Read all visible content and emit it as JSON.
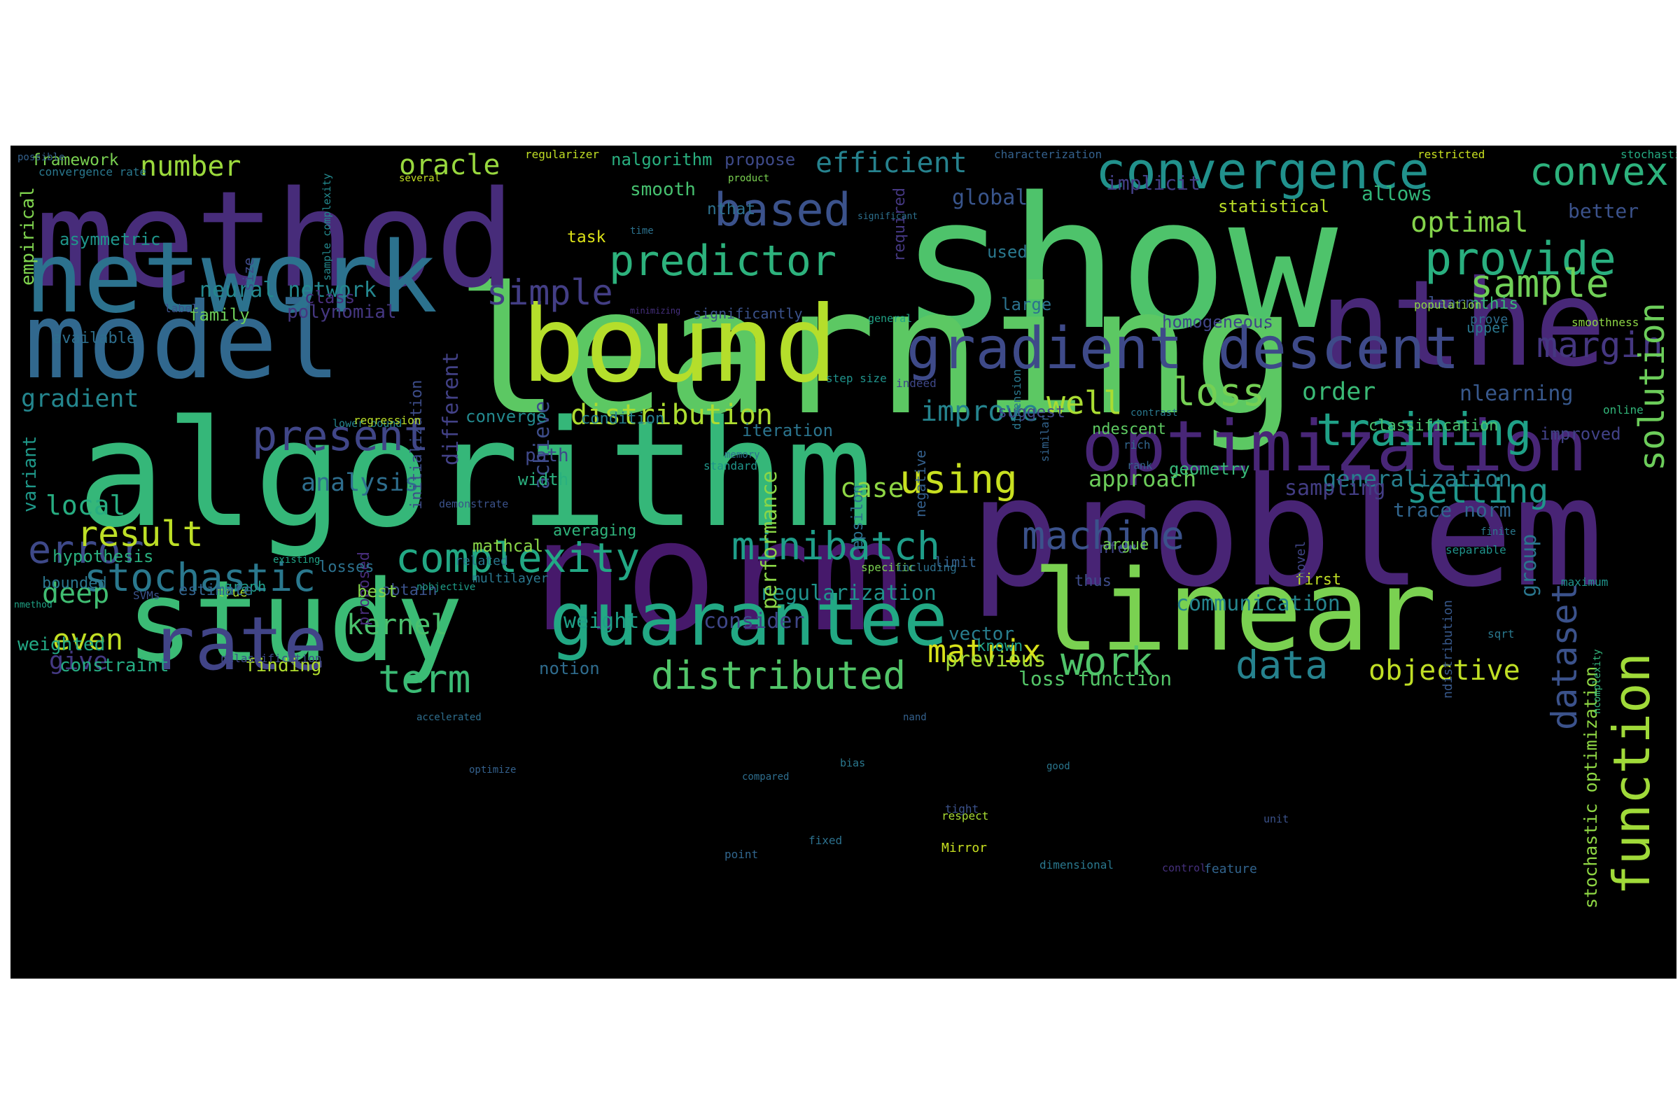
{
  "cloud": {
    "words": [
      {
        "text": "show",
        "color": "#4ec36b"
      },
      {
        "text": "learning",
        "color": "#5cc863"
      },
      {
        "text": "algorithm",
        "color": "#35b779"
      },
      {
        "text": "problem",
        "color": "#482475"
      },
      {
        "text": "method",
        "color": "#472c7a"
      },
      {
        "text": "norm",
        "color": "#46196b"
      },
      {
        "text": "model",
        "color": "#31688e"
      },
      {
        "text": "bound",
        "color": "#b5de2b"
      },
      {
        "text": "nthe",
        "color": "#482878"
      },
      {
        "text": "network",
        "color": "#2c728e"
      },
      {
        "text": "study",
        "color": "#3bbb75"
      },
      {
        "text": "linear",
        "color": "#7ad151"
      },
      {
        "text": "rate",
        "color": "#414487"
      },
      {
        "text": "guarantee",
        "color": "#22a884"
      },
      {
        "text": "optimization",
        "color": "#482677"
      },
      {
        "text": "gradient descent",
        "color": "#3e4a89"
      },
      {
        "text": "convergence",
        "color": "#21918c"
      },
      {
        "text": "function",
        "color": "#a0da39"
      },
      {
        "text": "complexity",
        "color": "#22a884"
      },
      {
        "text": "training",
        "color": "#1fa187"
      },
      {
        "text": "predictor",
        "color": "#2db27d"
      },
      {
        "text": "provide",
        "color": "#29af7f"
      },
      {
        "text": "minibatch",
        "color": "#1f9e89"
      },
      {
        "text": "based",
        "color": "#3b528b"
      },
      {
        "text": "present",
        "color": "#404688"
      },
      {
        "text": "distributed",
        "color": "#52c569"
      },
      {
        "text": "using",
        "color": "#c8e020"
      },
      {
        "text": "convex",
        "color": "#2db27d"
      },
      {
        "text": "stochastic",
        "color": "#2a788e"
      },
      {
        "text": "error",
        "color": "#3e4989"
      },
      {
        "text": "machine",
        "color": "#3b528b"
      },
      {
        "text": "sample",
        "color": "#70cf57"
      },
      {
        "text": "margin",
        "color": "#453781"
      },
      {
        "text": "data",
        "color": "#26828e"
      },
      {
        "text": "solution",
        "color": "#6ccd5a"
      },
      {
        "text": "work",
        "color": "#50c46a"
      },
      {
        "text": "term",
        "color": "#3bbb75"
      },
      {
        "text": "result",
        "color": "#bddf26"
      },
      {
        "text": "objective",
        "color": "#c0df25"
      },
      {
        "text": "loss",
        "color": "#75d054"
      },
      {
        "text": "matrix",
        "color": "#d8e219"
      },
      {
        "text": "setting",
        "color": "#1f968b"
      },
      {
        "text": "simple",
        "color": "#433e85"
      },
      {
        "text": "oracle",
        "color": "#98d83e"
      },
      {
        "text": "efficient",
        "color": "#26828e"
      },
      {
        "text": "number",
        "color": "#9bd93c"
      },
      {
        "text": "distribution",
        "color": "#addc30"
      },
      {
        "text": "analysis",
        "color": "#2e6e8e"
      },
      {
        "text": "well",
        "color": "#aadc32"
      },
      {
        "text": "improve",
        "color": "#25848e"
      },
      {
        "text": "kernel",
        "color": "#4ac16d"
      },
      {
        "text": "case",
        "color": "#8ed645"
      },
      {
        "text": "even",
        "color": "#c2df23"
      },
      {
        "text": "generalization",
        "color": "#277f8e"
      },
      {
        "text": "local",
        "color": "#27ad81"
      },
      {
        "text": "deep",
        "color": "#40bd72"
      },
      {
        "text": "optimal",
        "color": "#84d44b"
      },
      {
        "text": "order",
        "color": "#3aba76"
      },
      {
        "text": "dataset",
        "color": "#3b528b"
      },
      {
        "text": "gradient",
        "color": "#24868e"
      },
      {
        "text": "give",
        "color": "#443983"
      },
      {
        "text": "regularization",
        "color": "#20928c"
      },
      {
        "text": "neural network",
        "color": "#24878e"
      },
      {
        "text": "approach",
        "color": "#6ccd5a"
      },
      {
        "text": "communication",
        "color": "#25858e"
      },
      {
        "text": "sampling",
        "color": "#433d84"
      },
      {
        "text": "trace norm",
        "color": "#31668e"
      },
      {
        "text": "weight",
        "color": "#1fa088"
      },
      {
        "text": "consider",
        "color": "#3f4788"
      },
      {
        "text": "loss function",
        "color": "#54c568"
      },
      {
        "text": "previous",
        "color": "#a2da37"
      },
      {
        "text": "global",
        "color": "#39558c"
      },
      {
        "text": "implicit",
        "color": "#433e85"
      },
      {
        "text": "nlearning",
        "color": "#38588c"
      },
      {
        "text": "achieve",
        "color": "#3d4d8a"
      },
      {
        "text": "different",
        "color": "#424186"
      },
      {
        "text": "performance",
        "color": "#8bd646"
      },
      {
        "text": "group",
        "color": "#2a768e"
      },
      {
        "text": "vector",
        "color": "#287d8e"
      },
      {
        "text": "allows",
        "color": "#32b67a"
      },
      {
        "text": "better",
        "color": "#3b528b"
      },
      {
        "text": "statistical",
        "color": "#bade28"
      },
      {
        "text": "propose",
        "color": "#3e4a89"
      },
      {
        "text": "nalgorithm",
        "color": "#29af7f"
      },
      {
        "text": "class",
        "color": "#472d7b"
      },
      {
        "text": "polynomial",
        "color": "#453781"
      },
      {
        "text": "family",
        "color": "#6ccd5a"
      },
      {
        "text": "constraint",
        "color": "#25ab82"
      },
      {
        "text": "finding",
        "color": "#b0dd2f"
      },
      {
        "text": "weighted",
        "color": "#22a884"
      },
      {
        "text": "variant",
        "color": "#1f998a"
      },
      {
        "text": "stochastic optimization",
        "color": "#8fd744"
      },
      {
        "text": "homogeneous",
        "color": "#404588"
      },
      {
        "text": "empirical",
        "color": "#7fd34e"
      },
      {
        "text": "framework",
        "color": "#7ad151"
      },
      {
        "text": "required",
        "color": "#453882"
      },
      {
        "text": "nthat",
        "color": "#2d708e"
      },
      {
        "text": "smooth",
        "color": "#46c06f"
      },
      {
        "text": "asymmetric",
        "color": "#1f958b"
      },
      {
        "text": "hypothesis",
        "color": "#2ab07f"
      },
      {
        "text": "mathcal",
        "color": "#89d548"
      },
      {
        "text": "proposed",
        "color": "#472c7a"
      },
      {
        "text": "notion",
        "color": "#2f6c8e"
      },
      {
        "text": "task",
        "color": "#dde318"
      },
      {
        "text": "nthis",
        "color": "#37b878"
      },
      {
        "text": "nfor",
        "color": "#404688"
      },
      {
        "text": "first",
        "color": "#bfdf25"
      },
      {
        "text": "thus",
        "color": "#3e4c8a"
      },
      {
        "text": "argue",
        "color": "#75d054"
      },
      {
        "text": "ndescent",
        "color": "#5ec962"
      },
      {
        "text": "path",
        "color": "#3f4889"
      },
      {
        "text": "width",
        "color": "#2ab07f"
      },
      {
        "text": "condition",
        "color": "#27808e"
      },
      {
        "text": "converge",
        "color": "#23898e"
      },
      {
        "text": "iteration",
        "color": "#2b748e"
      },
      {
        "text": "suggest",
        "color": "#3f4788"
      },
      {
        "text": "classification",
        "color": "#4ac16d"
      },
      {
        "text": "improved",
        "color": "#414287"
      },
      {
        "text": "geometry",
        "color": "#37b878"
      },
      {
        "text": "bounded",
        "color": "#2a768e"
      },
      {
        "text": "obtain",
        "color": "#3b528b"
      },
      {
        "text": "best",
        "color": "#84d44b"
      },
      {
        "text": "averaging",
        "color": "#2fb47c"
      },
      {
        "text": "losses",
        "color": "#2c718e"
      },
      {
        "text": "large",
        "color": "#2c728e"
      },
      {
        "text": "learn",
        "color": "#3b528b"
      },
      {
        "text": "upper",
        "color": "#2a778e"
      },
      {
        "text": "epsilon",
        "color": "#2d708e"
      },
      {
        "text": "negative",
        "color": "#34608d"
      },
      {
        "text": "initialization",
        "color": "#3d4d8a"
      },
      {
        "text": "available",
        "color": "#2e6f8e"
      },
      {
        "text": "nmethod",
        "color": "#20a386"
      },
      {
        "text": "size",
        "color": "#3e4a89"
      },
      {
        "text": "used",
        "color": "#2a788e"
      },
      {
        "text": "known",
        "color": "#1f9e89"
      },
      {
        "text": "limit",
        "color": "#34618d"
      },
      {
        "text": "multilayer",
        "color": "#2a778e"
      },
      {
        "text": "graph",
        "color": "#1f9e89"
      },
      {
        "text": "true",
        "color": "#a8db34"
      },
      {
        "text": "SVMs",
        "color": "#3b528b"
      },
      {
        "text": "related",
        "color": "#2a768e"
      },
      {
        "text": "estimate",
        "color": "#32648e"
      },
      {
        "text": "prove",
        "color": "#2e6d8e"
      },
      {
        "text": "smoothness",
        "color": "#8ed645"
      },
      {
        "text": "population",
        "color": "#8ed645"
      },
      {
        "text": "online",
        "color": "#32b67a"
      },
      {
        "text": "novel",
        "color": "#404688"
      },
      {
        "text": "ndistribution",
        "color": "#38598c"
      },
      {
        "text": "ncomplexity",
        "color": "#32b67a"
      },
      {
        "text": "stochastic gradient",
        "color": "#25ac82"
      },
      {
        "text": "restricted",
        "color": "#c8e020"
      },
      {
        "text": "characterization",
        "color": "#34618d"
      },
      {
        "text": "regularizer",
        "color": "#c0df25"
      },
      {
        "text": "several",
        "color": "#c2df23"
      },
      {
        "text": "sample complexity",
        "color": "#23898e"
      },
      {
        "text": "convergence rate",
        "color": "#2a788e"
      },
      {
        "text": "significant",
        "color": "#2d708e"
      },
      {
        "text": "time",
        "color": "#2c728e"
      },
      {
        "text": "product",
        "color": "#7ad151"
      },
      {
        "text": "minimizing",
        "color": "#46307e"
      },
      {
        "text": "general",
        "color": "#20a386"
      },
      {
        "text": "significantly",
        "color": "#3b528b"
      },
      {
        "text": "label",
        "color": "#3b528b"
      },
      {
        "text": "lower bound",
        "color": "#25848e"
      },
      {
        "text": "regression",
        "color": "#bade28"
      },
      {
        "text": "step size",
        "color": "#20938c"
      },
      {
        "text": "indeed",
        "color": "#3f4889"
      },
      {
        "text": "dimension",
        "color": "#2a788e"
      },
      {
        "text": "demonstrate",
        "color": "#3b528b"
      },
      {
        "text": "memory",
        "color": "#2c718e"
      },
      {
        "text": "contrast",
        "color": "#2a788e"
      },
      {
        "text": "rich",
        "color": "#31668e"
      },
      {
        "text": "rank",
        "color": "#33638d"
      },
      {
        "text": "similar",
        "color": "#33638d"
      },
      {
        "text": "specific",
        "color": "#7ad151"
      },
      {
        "text": "standard",
        "color": "#1f968b"
      },
      {
        "text": "existing",
        "color": "#20a386"
      },
      {
        "text": "nobjective",
        "color": "#1f9e89"
      },
      {
        "text": "including",
        "color": "#2d708e"
      },
      {
        "text": "maximum",
        "color": "#20938c"
      },
      {
        "text": "finite",
        "color": "#2a788e"
      },
      {
        "text": "sqrt",
        "color": "#2a788e"
      },
      {
        "text": "separable",
        "color": "#20938c"
      },
      {
        "text": "nclassification",
        "color": "#3e4a89"
      },
      {
        "text": "accelerated",
        "color": "#2e6e8e"
      },
      {
        "text": "optimize",
        "color": "#34618d"
      },
      {
        "text": "compared",
        "color": "#2e6e8e"
      },
      {
        "text": "good",
        "color": "#2a768e"
      },
      {
        "text": "nand",
        "color": "#34618d"
      },
      {
        "text": "fixed",
        "color": "#2c718e"
      },
      {
        "text": "bias",
        "color": "#2a788e"
      },
      {
        "text": "respect",
        "color": "#a8db34"
      },
      {
        "text": "unit",
        "color": "#3b528b"
      },
      {
        "text": "Mirror",
        "color": "#c8e020"
      },
      {
        "text": "feature",
        "color": "#32648e"
      },
      {
        "text": "tight",
        "color": "#3b528b"
      },
      {
        "text": "point",
        "color": "#31668e"
      },
      {
        "text": "dimensional",
        "color": "#2a788e"
      },
      {
        "text": "control",
        "color": "#46307e"
      },
      {
        "text": "possible",
        "color": "#34618d"
      }
    ]
  }
}
